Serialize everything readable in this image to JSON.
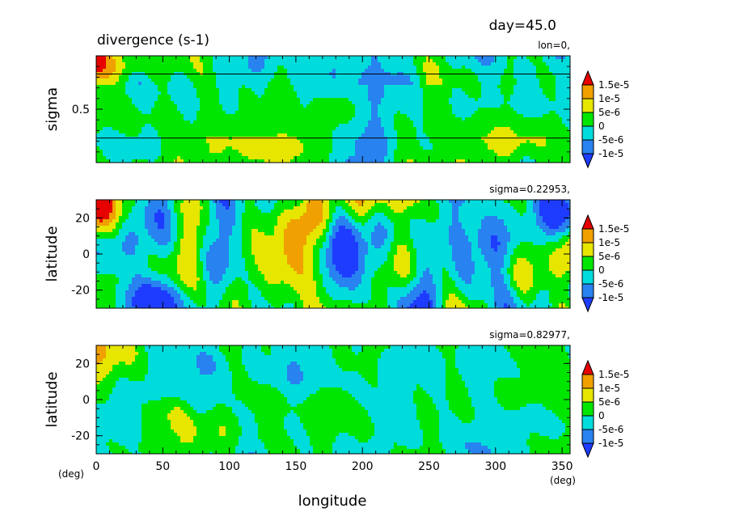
{
  "figure": {
    "title": "divergence (s-1)",
    "time_label": "day=45.0",
    "x_axis_label": "longitude",
    "x_unit_left": "(deg)",
    "x_unit_right": "(deg)"
  },
  "colors": {
    "levels": [
      "#1e3cff",
      "#2882f0",
      "#00dcdc",
      "#00e600",
      "#e6e600",
      "#f0a000",
      "#e60000"
    ],
    "line": "#000000"
  },
  "chart_data": [
    {
      "type": "heatmap",
      "panel": "lon-sigma cross section",
      "slice_label": "lon=0,",
      "xlabel": "",
      "ylabel": "sigma",
      "xlim": [
        0,
        356
      ],
      "ylim": [
        0,
        1
      ],
      "yticks": [
        "0.5"
      ],
      "ytick_values": [
        0.5
      ],
      "reference_lines_sigma": [
        0.83,
        0.23
      ],
      "colorbar_labels": [
        "1.5e-5",
        "1e-5",
        "5e-6",
        "0",
        "-5e-6",
        "-1e-5"
      ],
      "colorbar_values": [
        1.5e-05,
        1e-05,
        5e-06,
        0,
        -5e-06,
        -1e-05
      ],
      "seed": 11,
      "amp_scale": 0.9
    },
    {
      "type": "heatmap",
      "panel": "lon-lat map",
      "slice_label": "sigma=0.22953,",
      "xlabel": "",
      "ylabel": "latitude",
      "xlim": [
        0,
        356
      ],
      "ylim": [
        -30,
        30
      ],
      "yticks": [
        "20",
        "0",
        "-20"
      ],
      "ytick_values": [
        20,
        0,
        -20
      ],
      "colorbar_labels": [
        "1.5e-5",
        "1e-5",
        "5e-6",
        "0",
        "-5e-6",
        "-1e-5"
      ],
      "colorbar_values": [
        1.5e-05,
        1e-05,
        5e-06,
        0,
        -5e-06,
        -1e-05
      ],
      "seed": 23,
      "amp_scale": 1.35
    },
    {
      "type": "heatmap",
      "panel": "lon-lat map",
      "slice_label": "sigma=0.82977,",
      "xlabel": "longitude",
      "ylabel": "latitude",
      "xlim": [
        0,
        356
      ],
      "ylim": [
        -30,
        30
      ],
      "yticks": [
        "20",
        "0",
        "-20"
      ],
      "ytick_values": [
        20,
        0,
        -20
      ],
      "xticks": [
        "0",
        "50",
        "100",
        "150",
        "200",
        "250",
        "300",
        "350"
      ],
      "xtick_values": [
        0,
        50,
        100,
        150,
        200,
        250,
        300,
        350
      ],
      "colorbar_labels": [
        "1.5e-5",
        "1e-5",
        "5e-6",
        "0",
        "-5e-6",
        "-1e-5"
      ],
      "colorbar_values": [
        1.5e-05,
        1e-05,
        5e-06,
        0,
        -5e-06,
        -1e-05
      ],
      "seed": 37,
      "amp_scale": 0.55
    }
  ]
}
